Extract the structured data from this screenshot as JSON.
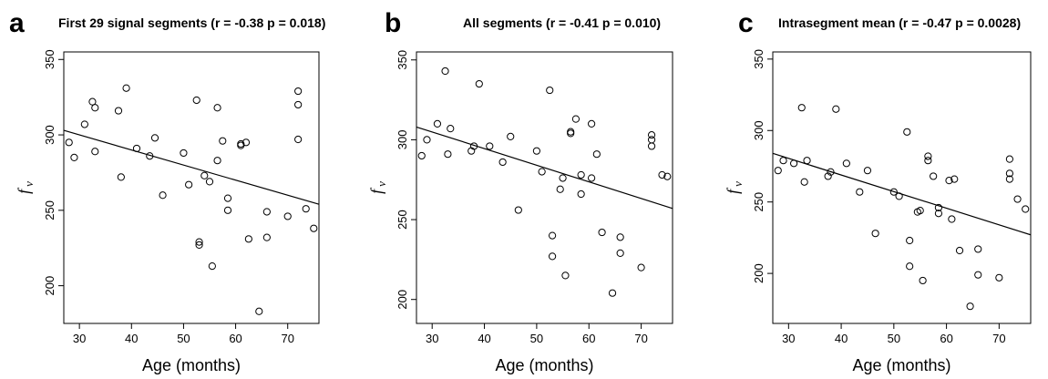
{
  "chart_data": [
    {
      "type": "scatter",
      "panel_label": "a",
      "title": "First 29 signal segments (r = -0.38 p = 0.018)",
      "xlabel": "Age (months)",
      "ylabel": "f",
      "ylabel_sub": "v",
      "xlim": [
        27,
        76
      ],
      "ylim": [
        175,
        355
      ],
      "xticks": [
        30,
        40,
        50,
        60,
        70
      ],
      "yticks": [
        200,
        250,
        300,
        350
      ],
      "grid": false,
      "fit_line": {
        "x": [
          27,
          76
        ],
        "y": [
          303,
          254
        ]
      },
      "points": [
        {
          "x": 28,
          "y": 295
        },
        {
          "x": 29,
          "y": 285
        },
        {
          "x": 31,
          "y": 307
        },
        {
          "x": 32.5,
          "y": 322
        },
        {
          "x": 33,
          "y": 318
        },
        {
          "x": 33,
          "y": 289
        },
        {
          "x": 37.5,
          "y": 316
        },
        {
          "x": 38,
          "y": 272
        },
        {
          "x": 39,
          "y": 331
        },
        {
          "x": 41,
          "y": 291
        },
        {
          "x": 43.5,
          "y": 286
        },
        {
          "x": 44.5,
          "y": 298
        },
        {
          "x": 46,
          "y": 260
        },
        {
          "x": 50,
          "y": 288
        },
        {
          "x": 51,
          "y": 267
        },
        {
          "x": 52.5,
          "y": 323
        },
        {
          "x": 53,
          "y": 229
        },
        {
          "x": 53,
          "y": 227
        },
        {
          "x": 54,
          "y": 273
        },
        {
          "x": 55,
          "y": 269
        },
        {
          "x": 55.5,
          "y": 213
        },
        {
          "x": 56.5,
          "y": 318
        },
        {
          "x": 56.5,
          "y": 283
        },
        {
          "x": 57.5,
          "y": 296
        },
        {
          "x": 58.5,
          "y": 258
        },
        {
          "x": 58.5,
          "y": 250
        },
        {
          "x": 61,
          "y": 294
        },
        {
          "x": 61,
          "y": 293
        },
        {
          "x": 62,
          "y": 295
        },
        {
          "x": 62.5,
          "y": 231
        },
        {
          "x": 64.5,
          "y": 183
        },
        {
          "x": 66,
          "y": 232
        },
        {
          "x": 66,
          "y": 249
        },
        {
          "x": 70,
          "y": 246
        },
        {
          "x": 72,
          "y": 329
        },
        {
          "x": 72,
          "y": 320
        },
        {
          "x": 72,
          "y": 297
        },
        {
          "x": 73.5,
          "y": 251
        },
        {
          "x": 75,
          "y": 238
        }
      ]
    },
    {
      "type": "scatter",
      "panel_label": "b",
      "title": "All segments (r = -0.41 p = 0.010)",
      "xlabel": "Age (months)",
      "ylabel": "f",
      "ylabel_sub": "v",
      "xlim": [
        27,
        76
      ],
      "ylim": [
        185,
        355
      ],
      "xticks": [
        30,
        40,
        50,
        60,
        70
      ],
      "yticks": [
        200,
        250,
        300,
        350
      ],
      "grid": false,
      "fit_line": {
        "x": [
          27,
          76
        ],
        "y": [
          308,
          257
        ]
      },
      "points": [
        {
          "x": 28,
          "y": 290
        },
        {
          "x": 29,
          "y": 300
        },
        {
          "x": 31,
          "y": 310
        },
        {
          "x": 32.5,
          "y": 343
        },
        {
          "x": 33,
          "y": 291
        },
        {
          "x": 33.5,
          "y": 307
        },
        {
          "x": 37.5,
          "y": 293
        },
        {
          "x": 38,
          "y": 296
        },
        {
          "x": 39,
          "y": 335
        },
        {
          "x": 41,
          "y": 296
        },
        {
          "x": 43.5,
          "y": 286
        },
        {
          "x": 45,
          "y": 302
        },
        {
          "x": 46.5,
          "y": 256
        },
        {
          "x": 50,
          "y": 293
        },
        {
          "x": 51,
          "y": 280
        },
        {
          "x": 52.5,
          "y": 331
        },
        {
          "x": 53,
          "y": 240
        },
        {
          "x": 53,
          "y": 227
        },
        {
          "x": 54.5,
          "y": 269
        },
        {
          "x": 55,
          "y": 276
        },
        {
          "x": 55.5,
          "y": 215
        },
        {
          "x": 56.5,
          "y": 305
        },
        {
          "x": 56.5,
          "y": 304
        },
        {
          "x": 57.5,
          "y": 313
        },
        {
          "x": 58.5,
          "y": 278
        },
        {
          "x": 58.5,
          "y": 266
        },
        {
          "x": 60.5,
          "y": 310
        },
        {
          "x": 60.5,
          "y": 276
        },
        {
          "x": 61.5,
          "y": 291
        },
        {
          "x": 62.5,
          "y": 242
        },
        {
          "x": 64.5,
          "y": 204
        },
        {
          "x": 66,
          "y": 229
        },
        {
          "x": 66,
          "y": 239
        },
        {
          "x": 70,
          "y": 220
        },
        {
          "x": 72,
          "y": 303
        },
        {
          "x": 72,
          "y": 300
        },
        {
          "x": 72,
          "y": 296
        },
        {
          "x": 74,
          "y": 278
        },
        {
          "x": 75,
          "y": 277
        }
      ]
    },
    {
      "type": "scatter",
      "panel_label": "c",
      "title": "Intrasegment mean (r = -0.47 p = 0.0028)",
      "xlabel": "Age (months)",
      "ylabel": "f",
      "ylabel_sub": "v",
      "xlim": [
        27,
        76
      ],
      "ylim": [
        165,
        355
      ],
      "xticks": [
        30,
        40,
        50,
        60,
        70
      ],
      "yticks": [
        200,
        250,
        300,
        350
      ],
      "grid": false,
      "fit_line": {
        "x": [
          27,
          76
        ],
        "y": [
          284,
          227
        ]
      },
      "points": [
        {
          "x": 28,
          "y": 272
        },
        {
          "x": 29,
          "y": 279
        },
        {
          "x": 31,
          "y": 277
        },
        {
          "x": 32.5,
          "y": 316
        },
        {
          "x": 33,
          "y": 264
        },
        {
          "x": 33.5,
          "y": 279
        },
        {
          "x": 37.5,
          "y": 268
        },
        {
          "x": 38,
          "y": 271
        },
        {
          "x": 39,
          "y": 315
        },
        {
          "x": 41,
          "y": 277
        },
        {
          "x": 43.5,
          "y": 257
        },
        {
          "x": 45,
          "y": 272
        },
        {
          "x": 46.5,
          "y": 228
        },
        {
          "x": 50,
          "y": 257
        },
        {
          "x": 51,
          "y": 254
        },
        {
          "x": 52.5,
          "y": 299
        },
        {
          "x": 53,
          "y": 223
        },
        {
          "x": 53,
          "y": 205
        },
        {
          "x": 54.5,
          "y": 243
        },
        {
          "x": 55,
          "y": 244
        },
        {
          "x": 55.5,
          "y": 195
        },
        {
          "x": 56.5,
          "y": 282
        },
        {
          "x": 56.5,
          "y": 279
        },
        {
          "x": 57.5,
          "y": 268
        },
        {
          "x": 58.5,
          "y": 246
        },
        {
          "x": 58.5,
          "y": 242
        },
        {
          "x": 60.5,
          "y": 265
        },
        {
          "x": 61,
          "y": 238
        },
        {
          "x": 61.5,
          "y": 266
        },
        {
          "x": 62.5,
          "y": 216
        },
        {
          "x": 64.5,
          "y": 177
        },
        {
          "x": 66,
          "y": 199
        },
        {
          "x": 66,
          "y": 217
        },
        {
          "x": 70,
          "y": 197
        },
        {
          "x": 72,
          "y": 280
        },
        {
          "x": 72,
          "y": 270
        },
        {
          "x": 72,
          "y": 266
        },
        {
          "x": 73.5,
          "y": 252
        },
        {
          "x": 75,
          "y": 245
        }
      ]
    }
  ]
}
